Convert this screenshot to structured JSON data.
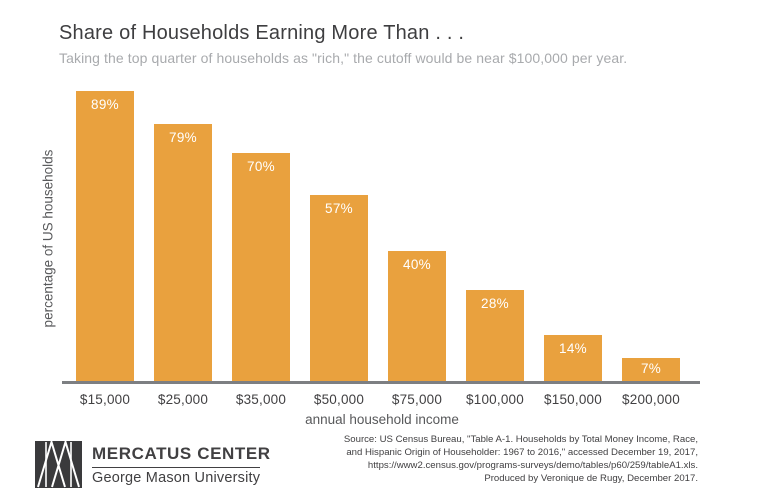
{
  "header": {
    "title": "Share of Households Earning More Than . . .",
    "subtitle": "Taking the top quarter of households as \"rich,\" the cutoff would be near $100,000 per year."
  },
  "chart_data": {
    "type": "bar",
    "title": "Share of Households Earning More Than . . .",
    "categories": [
      "$15,000",
      "$25,000",
      "$35,000",
      "$50,000",
      "$75,000",
      "$100,000",
      "$150,000",
      "$200,000"
    ],
    "values": [
      89,
      79,
      70,
      57,
      40,
      28,
      14,
      7
    ],
    "value_labels": [
      "89%",
      "79%",
      "70%",
      "57%",
      "40%",
      "28%",
      "14%",
      "7%"
    ],
    "xlabel": "annual household income",
    "ylabel": "percentage of US households",
    "ylim": [
      0,
      92
    ],
    "grid": false,
    "legend": "none",
    "bar_color": "#e9a13e",
    "value_label_color": "#ffffff",
    "axis_line_color": "#7d7f82"
  },
  "footer": {
    "logo": {
      "mark_icon": "mercatus-m-monogram",
      "org": "MERCATUS CENTER",
      "sub": "George Mason University"
    },
    "source_lines": [
      "Source: US Census Bureau, \"Table A-1. Households by Total Money Income, Race,",
      "and Hispanic Origin of Householder: 1967 to 2016,\" accessed December 19, 2017,",
      "https://www2.census.gov/programs-surveys/demo/tables/p60/259/tableA1.xls.",
      "Produced by Veronique de Rugy, December 2017."
    ]
  },
  "colors": {
    "background": "#ffffff",
    "title": "#3e3e40",
    "subtitle": "#a8aaad",
    "tick_text": "#414042",
    "axis_title_text": "#58595b",
    "logo_ink": "#414042"
  }
}
